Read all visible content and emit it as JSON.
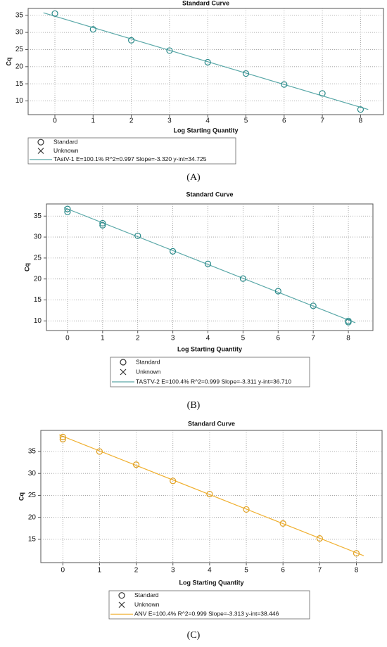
{
  "chart_data": [
    {
      "type": "scatter",
      "title": "Standard Curve",
      "x_label": "Log Starting Quantity",
      "y_label": "Cq",
      "panel": "(A)",
      "xlim": [
        -0.7,
        8.6
      ],
      "ylim": [
        6,
        37
      ],
      "xticks": [
        0,
        1,
        2,
        3,
        4,
        5,
        6,
        7,
        8
      ],
      "yticks": [
        10,
        15,
        20,
        25,
        30,
        35
      ],
      "grid": true,
      "series": [
        {
          "name": "Standard",
          "marker": "circle",
          "color": "#2a8a8a",
          "x": [
            0,
            1,
            2,
            3,
            4,
            5,
            6,
            7,
            8
          ],
          "values": [
            35.5,
            30.9,
            27.7,
            24.7,
            21.3,
            18.0,
            14.8,
            12.2,
            7.5
          ]
        },
        {
          "name": "Unknown",
          "marker": "x",
          "color": "#333333",
          "x": [],
          "values": []
        },
        {
          "name": "TAstV-1  E=100.1% R^2=0.997 Slope=-3.320 y-int=34.725",
          "marker": "line",
          "color": "#5aa8a8",
          "x": [
            -0.3,
            8.2
          ],
          "values": [
            35.72,
            7.5
          ]
        }
      ]
    },
    {
      "type": "scatter",
      "title": "Standard Curve",
      "x_label": "Log Starting Quantity",
      "y_label": "Cq",
      "panel": "(B)",
      "xlim": [
        -0.6,
        8.7
      ],
      "ylim": [
        7.7,
        37.9
      ],
      "xticks": [
        0,
        1,
        2,
        3,
        4,
        5,
        6,
        7,
        8
      ],
      "yticks": [
        10,
        15,
        20,
        25,
        30,
        35
      ],
      "grid": true,
      "series": [
        {
          "name": "Standard",
          "marker": "circle",
          "color": "#2a8a8a",
          "x": [
            0,
            0,
            1,
            1,
            2,
            3,
            4,
            5,
            6,
            7,
            8,
            8
          ],
          "values": [
            36.7,
            36.0,
            33.3,
            32.8,
            30.3,
            26.6,
            23.6,
            20.1,
            17.1,
            13.6,
            10.0,
            9.7
          ]
        },
        {
          "name": "Unknown",
          "marker": "x",
          "color": "#333333",
          "x": [],
          "values": []
        },
        {
          "name": "TASTV-2  E=100.4% R^2=0.999 Slope=-3.311 y-int=36.710",
          "marker": "line",
          "color": "#5aa8a8",
          "x": [
            -0.1,
            8.2
          ],
          "values": [
            37.04,
            9.56
          ]
        }
      ]
    },
    {
      "type": "scatter",
      "title": "Standard Curve",
      "x_label": "Log Starting Quantity",
      "y_label": "Cq",
      "panel": "(C)",
      "xlim": [
        -0.6,
        8.7
      ],
      "ylim": [
        9.7,
        39.8
      ],
      "xticks": [
        0,
        1,
        2,
        3,
        4,
        5,
        6,
        7,
        8
      ],
      "yticks": [
        15,
        20,
        25,
        30,
        35
      ],
      "grid": true,
      "series": [
        {
          "name": "Standard",
          "marker": "circle",
          "color": "#e0a020",
          "x": [
            0,
            0,
            1,
            2,
            3,
            4,
            5,
            6,
            7,
            8
          ],
          "values": [
            38.3,
            37.8,
            35.0,
            32.0,
            28.3,
            25.3,
            21.8,
            18.6,
            15.2,
            11.8
          ]
        },
        {
          "name": "Unknown",
          "marker": "x",
          "color": "#333333",
          "x": [],
          "values": []
        },
        {
          "name": "ANV  E=100.4% R^2=0.999 Slope=-3.313 y-int=38.446",
          "marker": "line",
          "color": "#f0b030",
          "x": [
            -0.1,
            8.2
          ],
          "values": [
            38.78,
            11.28
          ]
        }
      ]
    }
  ]
}
